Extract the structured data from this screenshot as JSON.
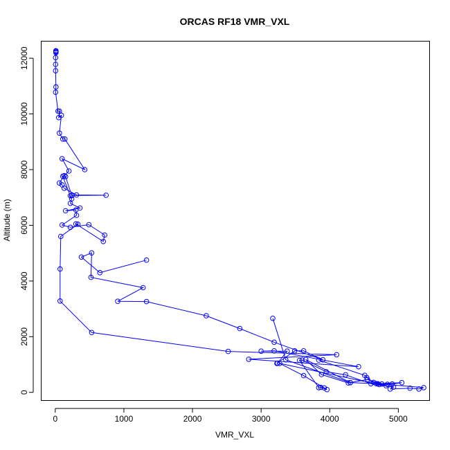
{
  "chart_data": {
    "type": "line",
    "title": "ORCAS RF18 VMR_VXL",
    "xlabel": "VMR_VXL",
    "ylabel": "Altitude (m)",
    "xlim": [
      -200,
      5450
    ],
    "ylim": [
      -280,
      12600
    ],
    "xticks": [
      0,
      1000,
      2000,
      3000,
      4000,
      5000
    ],
    "xtick_labels": [
      "0",
      "1000",
      "2000",
      "3000",
      "4000",
      "5000"
    ],
    "yticks": [
      0,
      2000,
      4000,
      6000,
      8000,
      10000,
      12000
    ],
    "ytick_labels": [
      "0",
      "2000",
      "4000",
      "6000",
      "8000",
      "10000",
      "12000"
    ],
    "grid": false,
    "colors": {
      "series": "#0000ff",
      "frame": "#000000",
      "background": "#ffffff"
    },
    "series": [
      {
        "marker": "open-circle",
        "points": [
          [
            10,
            12270
          ],
          [
            10,
            12250
          ],
          [
            10,
            12220
          ],
          [
            10,
            12200
          ],
          [
            5,
            12020
          ],
          [
            5,
            11780
          ],
          [
            5,
            11550
          ],
          [
            10,
            10970
          ],
          [
            5,
            10780
          ],
          [
            40,
            10100
          ],
          [
            60,
            10100
          ],
          [
            50,
            9870
          ],
          [
            90,
            9950
          ],
          [
            60,
            9310
          ],
          [
            110,
            9100
          ],
          [
            140,
            9100
          ],
          [
            430,
            8000
          ],
          [
            100,
            8390
          ],
          [
            200,
            7950
          ],
          [
            130,
            7780
          ],
          [
            60,
            7520
          ],
          [
            100,
            7450
          ],
          [
            130,
            7330
          ],
          [
            310,
            7090
          ],
          [
            740,
            7080
          ],
          [
            240,
            7070
          ],
          [
            150,
            7750
          ],
          [
            110,
            7760
          ],
          [
            220,
            7060
          ],
          [
            240,
            6950
          ],
          [
            220,
            6790
          ],
          [
            360,
            6620
          ],
          [
            150,
            6520
          ],
          [
            300,
            6550
          ],
          [
            310,
            6360
          ],
          [
            100,
            6010
          ],
          [
            220,
            5930
          ],
          [
            490,
            6020
          ],
          [
            720,
            5650
          ],
          [
            700,
            5420
          ],
          [
            300,
            6050
          ],
          [
            330,
            6040
          ],
          [
            80,
            5600
          ],
          [
            70,
            4430
          ],
          [
            70,
            3280
          ],
          [
            530,
            2150
          ],
          [
            2520,
            1470
          ],
          [
            4100,
            1350
          ],
          [
            2820,
            1190
          ],
          [
            4420,
            920
          ],
          [
            3190,
            1490
          ],
          [
            3000,
            1480
          ],
          [
            3380,
            1480
          ],
          [
            3240,
            1050
          ],
          [
            3230,
            1040
          ],
          [
            3490,
            1490
          ],
          [
            3620,
            1490
          ],
          [
            3900,
            1170
          ],
          [
            3190,
            1800
          ],
          [
            2690,
            2290
          ],
          [
            2200,
            2750
          ],
          [
            1330,
            3260
          ],
          [
            910,
            3270
          ],
          [
            1280,
            3760
          ],
          [
            520,
            4130
          ],
          [
            530,
            5010
          ],
          [
            380,
            4860
          ],
          [
            650,
            4300
          ],
          [
            1330,
            4750
          ]
        ]
      },
      {
        "marker": "open-circle",
        "points": [
          [
            3170,
            2660
          ],
          [
            3360,
            1170
          ],
          [
            4300,
            350
          ],
          [
            4680,
            310
          ],
          [
            5050,
            350
          ],
          [
            4910,
            300
          ],
          [
            4700,
            310
          ],
          [
            4300,
            350
          ],
          [
            3650,
            1180
          ],
          [
            3880,
            640
          ],
          [
            4270,
            340
          ],
          [
            4550,
            460
          ],
          [
            4760,
            300
          ],
          [
            5370,
            170
          ],
          [
            5300,
            120
          ],
          [
            5170,
            150
          ],
          [
            4880,
            120
          ],
          [
            4930,
            190
          ],
          [
            4600,
            310
          ],
          [
            4230,
            630
          ],
          [
            3950,
            740
          ],
          [
            3600,
            1160
          ],
          [
            3560,
            1150
          ],
          [
            3840,
            170
          ],
          [
            3870,
            180
          ],
          [
            3960,
            100
          ],
          [
            3920,
            160
          ],
          [
            3620,
            600
          ],
          [
            3270,
            1040
          ],
          [
            4720,
            280
          ],
          [
            4840,
            290
          ],
          [
            4820,
            240
          ],
          [
            4640,
            360
          ],
          [
            4540,
            530
          ],
          [
            4510,
            610
          ],
          [
            3840,
            1160
          ]
        ]
      }
    ]
  }
}
